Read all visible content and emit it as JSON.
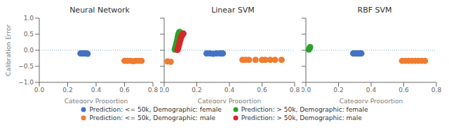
{
  "chart_data": [
    {
      "type": "scatter",
      "title": "Neural Network",
      "xlabel": "Category Proportion",
      "ylabel": "Calibration Error",
      "xlim": [
        0.0,
        0.8
      ],
      "ylim": [
        -1.0,
        1.0
      ],
      "xticks": [
        {
          "value": 0.0,
          "label": "0.0"
        },
        0.2,
        0.4,
        0.6,
        0.8
      ],
      "yticks": [
        {
          "value": -1.0,
          "label": "−1.0"
        },
        {
          "value": -0.5,
          "label": "−0.5"
        },
        {
          "value": 0.0,
          "label": "0.0"
        },
        0.5,
        {
          "value": 1.0,
          "label": "1.0"
        }
      ],
      "grid": false,
      "legend": "bottom",
      "reference_lines": [
        {
          "y": 0,
          "color": "#7bafd4",
          "line_style": "dotted"
        }
      ],
      "series": [
        {
          "name": "Prediction: <= 50k, Demographic: female",
          "color": "#4472C4",
          "x": [
            0.29,
            0.3,
            0.31,
            0.32,
            0.33,
            0.34
          ],
          "values": [
            -0.1,
            -0.1,
            -0.1,
            -0.1,
            -0.1,
            -0.11
          ]
        },
        {
          "name": "Prediction: <= 50k, Demographic: male",
          "color": "#ED7D31",
          "x": [
            0.6,
            0.62,
            0.64,
            0.66,
            0.68,
            0.7,
            0.72
          ],
          "values": [
            -0.33,
            -0.33,
            -0.33,
            -0.34,
            -0.33,
            -0.33,
            -0.33
          ]
        },
        {
          "name": "Prediction: > 50k, Demographic: female",
          "color": "#2CA02C",
          "x": [],
          "values": []
        },
        {
          "name": "Prediction: > 50k, Demographic: male",
          "color": "#D62728",
          "x": [],
          "values": []
        }
      ]
    },
    {
      "type": "scatter",
      "title": "Linear SVM",
      "xlabel": "Category Proportion",
      "xlim": [
        0.0,
        0.8
      ],
      "ylim": [
        -1.0,
        1.0
      ],
      "xticks": [
        {
          "value": 0.0,
          "label": "0.0"
        },
        0.2,
        0.4,
        0.6,
        0.8
      ],
      "yticks": [
        -1.0,
        -0.5,
        0.0,
        0.5,
        1.0
      ],
      "tick_labels": "x",
      "grid": false,
      "reference_lines": [
        {
          "y": 0,
          "color": "#7bafd4",
          "line_style": "dotted"
        }
      ],
      "series": [
        {
          "name": "Prediction: <= 50k, Demographic: female",
          "color": "#4472C4",
          "x": [
            0.26,
            0.28,
            0.3,
            0.32,
            0.34,
            0.35,
            0.36
          ],
          "values": [
            -0.1,
            -0.1,
            -0.11,
            -0.1,
            -0.1,
            -0.1,
            -0.1
          ]
        },
        {
          "name": "Prediction: <= 50k, Demographic: male",
          "color": "#ED7D31",
          "x": [
            0.02,
            0.04,
            0.48,
            0.5,
            0.52,
            0.56,
            0.6,
            0.62,
            0.65,
            0.68,
            0.72
          ],
          "values": [
            -0.35,
            -0.36,
            -0.3,
            -0.3,
            -0.3,
            -0.3,
            -0.3,
            -0.3,
            -0.3,
            -0.3,
            -0.3
          ]
        },
        {
          "name": "Prediction: > 50k, Demographic: female",
          "color": "#2CA02C",
          "x": [
            0.065,
            0.068,
            0.072,
            0.076,
            0.08,
            0.083,
            0.086,
            0.089,
            0.092,
            0.095
          ],
          "values": [
            0.02,
            0.08,
            0.16,
            0.24,
            0.32,
            0.4,
            0.47,
            0.52,
            0.55,
            0.57
          ]
        },
        {
          "name": "Prediction: > 50k, Demographic: male",
          "color": "#D62728",
          "x": [
            0.082,
            0.086,
            0.09,
            0.094,
            0.098,
            0.102,
            0.106,
            0.11,
            0.114,
            0.118
          ],
          "values": [
            0.01,
            0.07,
            0.14,
            0.22,
            0.3,
            0.37,
            0.43,
            0.47,
            0.5,
            0.52
          ]
        }
      ]
    },
    {
      "type": "scatter",
      "title": "RBF SVM",
      "xlabel": "Category Proportion",
      "xlim": [
        0.0,
        0.8
      ],
      "ylim": [
        -1.0,
        1.0
      ],
      "xticks": [
        {
          "value": 0.0,
          "label": "0.0"
        },
        0.2,
        0.4,
        0.6,
        0.8
      ],
      "yticks": [
        -1.0,
        -0.5,
        0.0,
        0.5,
        1.0
      ],
      "tick_labels": "x",
      "grid": false,
      "reference_lines": [
        {
          "y": 0,
          "color": "#7bafd4",
          "line_style": "dotted"
        }
      ],
      "series": [
        {
          "name": "Prediction: <= 50k, Demographic: female",
          "color": "#4472C4",
          "x": [
            0.29,
            0.3,
            0.31,
            0.32,
            0.33,
            0.34
          ],
          "values": [
            -0.1,
            -0.1,
            -0.1,
            -0.1,
            -0.1,
            -0.1
          ]
        },
        {
          "name": "Prediction: <= 50k, Demographic: male",
          "color": "#ED7D31",
          "x": [
            0.59,
            0.61,
            0.63,
            0.65,
            0.67,
            0.69,
            0.71,
            0.73
          ],
          "values": [
            -0.33,
            -0.33,
            -0.33,
            -0.33,
            -0.33,
            -0.33,
            -0.33,
            -0.33
          ]
        },
        {
          "name": "Prediction: > 50k, Demographic: female",
          "color": "#2CA02C",
          "x": [
            0.018,
            0.022,
            0.026
          ],
          "values": [
            0.02,
            0.06,
            0.1
          ]
        },
        {
          "name": "Prediction: > 50k, Demographic: male",
          "color": "#D62728",
          "x": [],
          "values": []
        }
      ]
    }
  ]
}
